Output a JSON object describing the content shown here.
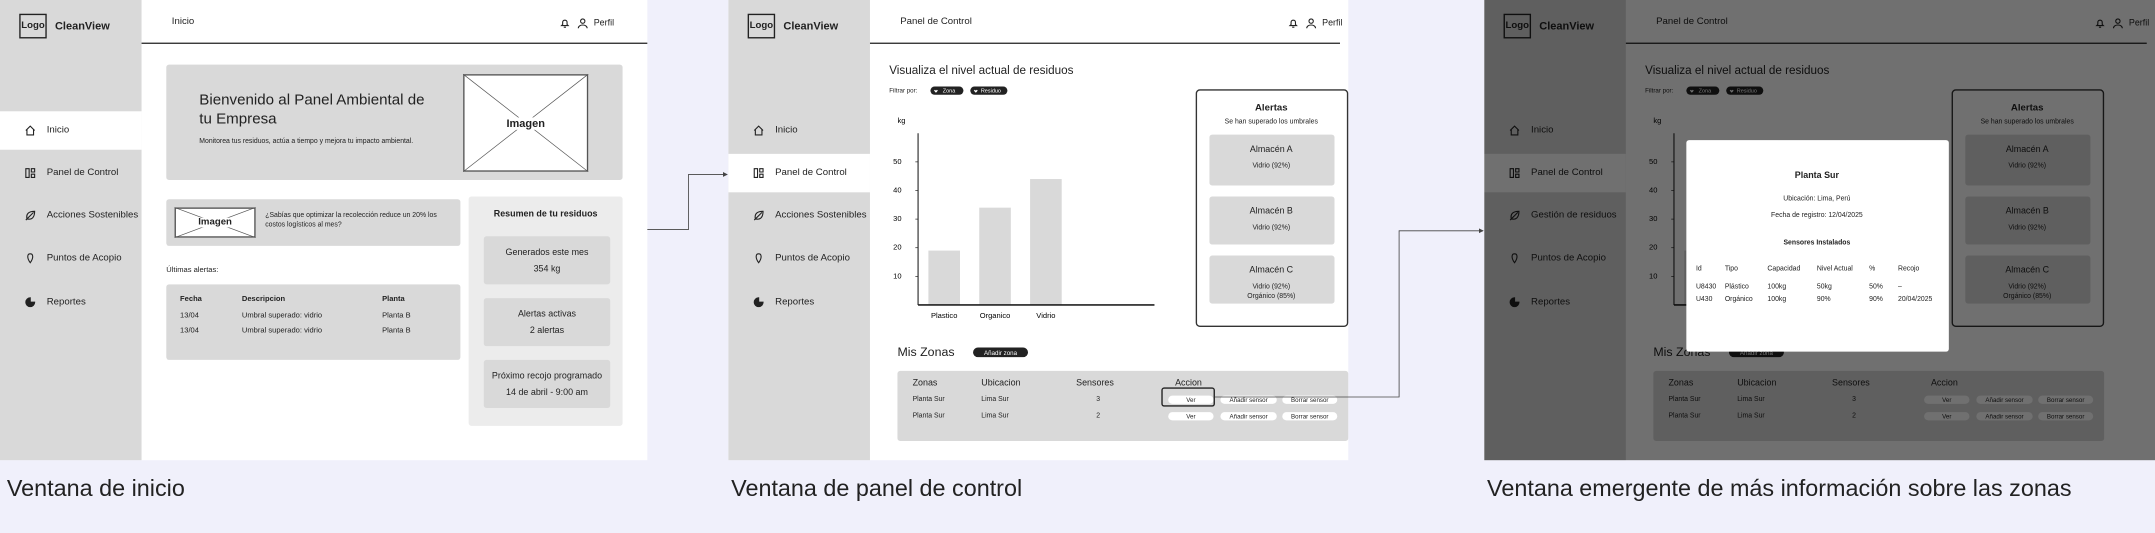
{
  "window_home": {
    "logo": "Logo",
    "brand": "CleanView",
    "header_title": "Inicio",
    "profile": "Perfil",
    "menu": [
      "Inicio",
      "Panel de Control",
      "Acciones Sostenibles",
      "Puntos de Acopio",
      "Reportes"
    ],
    "banner": {
      "title": "Bienvenido al Panel Ambiental de tu Empresa",
      "text": "Monitorea tus residuos, actúa a tiempo y mejora tu impacto ambiental.",
      "image": "Imagen"
    },
    "tip": {
      "image": "Imagen",
      "text": "¿Sabías que optimizar la recolección reduce un 20% los costos logísticos al mes?"
    },
    "alerts_title": "Últimas alertas:",
    "alerts_table": {
      "headers": [
        "Fecha",
        "Descripcion",
        "Planta"
      ],
      "rows": [
        [
          "13/04",
          "Umbral superado: vidrio",
          "Planta B"
        ],
        [
          "13/04",
          "Umbral superado: vidrio",
          "Planta B"
        ]
      ]
    },
    "summary": {
      "title": "Resumen de tu residuos",
      "cards": [
        {
          "label": "Generados este mes",
          "value": "354 kg"
        },
        {
          "label": "Alertas activas",
          "value": "2 alertas"
        },
        {
          "label": "Próximo recojo programado",
          "value": "14 de abril - 9:00 am"
        }
      ]
    }
  },
  "window_control": {
    "logo": "Logo",
    "brand": "CleanView",
    "header_title": "Panel de Control",
    "profile": "Perfil",
    "menu": [
      "Inicio",
      "Panel de Control",
      "Acciones Sostenibles",
      "Puntos de Acopio",
      "Reportes"
    ],
    "section_title": "Visualiza el nivel actual de residuos",
    "filter_label": "Filtrar por:",
    "filters": [
      "Zona",
      "Residuo"
    ],
    "chart": {
      "type": "bar",
      "y_label": "kg",
      "categories": [
        "Plastico",
        "Organico",
        "Vidrio"
      ],
      "values": [
        19,
        34,
        44
      ],
      "color": "#d9d9d9",
      "ylim": [
        0,
        60
      ],
      "yticks": [
        10,
        20,
        30,
        40,
        50
      ]
    },
    "alerts": {
      "title": "Alertas",
      "subtitle": "Se han superado los umbrales",
      "cards": [
        {
          "name": "Almacén A",
          "lines": [
            "Vidrio (92%)"
          ]
        },
        {
          "name": "Almacén B",
          "lines": [
            "Vidrio (92%)"
          ]
        },
        {
          "name": "Almacén C",
          "lines": [
            "Vidrio (92%)",
            "Orgánico (85%)"
          ]
        }
      ]
    },
    "zones": {
      "title": "Mis Zonas",
      "add_button": "Añadir zona",
      "headers": [
        "Zonas",
        "Ubicacion",
        "Sensores",
        "Accion"
      ],
      "rows": [
        {
          "zone": "Planta Sur",
          "location": "Lima Sur",
          "sensors": "3",
          "actions": [
            "Ver",
            "Añadir sensor",
            "Borrar sensor"
          ]
        },
        {
          "zone": "Planta Sur",
          "location": "Lima Sur",
          "sensors": "2",
          "actions": [
            "Ver",
            "Añadir sensor",
            "Borrar sensor"
          ]
        }
      ]
    }
  },
  "window_popup": {
    "logo": "Logo",
    "brand": "CleanView",
    "header_title": "Panel de Control",
    "profile": "Perfil",
    "menu": [
      "Inicio",
      "Panel de Control",
      "Gestión de residuos",
      "Puntos de Acopio",
      "Reportes"
    ],
    "section_title": "Visualiza el nivel actual de residuos",
    "filter_label": "Filtrar por:",
    "filters": [
      "Zona",
      "Residuo"
    ],
    "chart": {
      "type": "bar",
      "y_label": "kg",
      "categories": [
        "Plastico",
        "Organico",
        "Vidrio"
      ],
      "values": [
        19,
        34,
        44
      ],
      "color": "#d9d9d9",
      "ylim": [
        0,
        60
      ],
      "yticks": [
        10,
        20,
        30,
        40,
        50
      ]
    },
    "alerts": {
      "title": "Alertas",
      "subtitle": "Se han superado los umbrales",
      "cards": [
        {
          "name": "Almacén A",
          "lines": [
            "Vidrio (92%)"
          ]
        },
        {
          "name": "Almacén B",
          "lines": [
            "Vidrio (92%)"
          ]
        },
        {
          "name": "Almacén C",
          "lines": [
            "Vidrio (92%)",
            "Orgánico (85%)"
          ]
        }
      ]
    },
    "zones": {
      "title": "Mis Zonas",
      "add_button": "Añadir zona",
      "headers": [
        "Zonas",
        "Ubicacion",
        "Sensores",
        "Accion"
      ],
      "rows": [
        {
          "zone": "Planta Sur",
          "location": "Lima Sur",
          "sensors": "3",
          "actions": [
            "Ver",
            "Añadir sensor",
            "Borrar sensor"
          ]
        },
        {
          "zone": "Planta Sur",
          "location": "Lima Sur",
          "sensors": "2",
          "actions": [
            "Ver",
            "Añadir sensor",
            "Borrar sensor"
          ]
        }
      ]
    },
    "modal": {
      "title": "Planta Sur",
      "location": "Ubicación: Lima, Perú",
      "date": "Fecha de registro: 12/04/2025",
      "sensors_title": "Sensores Instalados",
      "headers": [
        "Id",
        "Tipo",
        "Capacidad",
        "Nivel Actual",
        "%",
        "Recojo"
      ],
      "rows": [
        [
          "U8430",
          "Plástico",
          "100kg",
          "50kg",
          "50%",
          "–"
        ],
        [
          "U430",
          "Orgánico",
          "100kg",
          "90%",
          "90%",
          "20/04/2025"
        ]
      ]
    }
  },
  "captions": [
    "Ventana de inicio",
    "Ventana de panel de control",
    "Ventana emergente de más información sobre las zonas"
  ]
}
